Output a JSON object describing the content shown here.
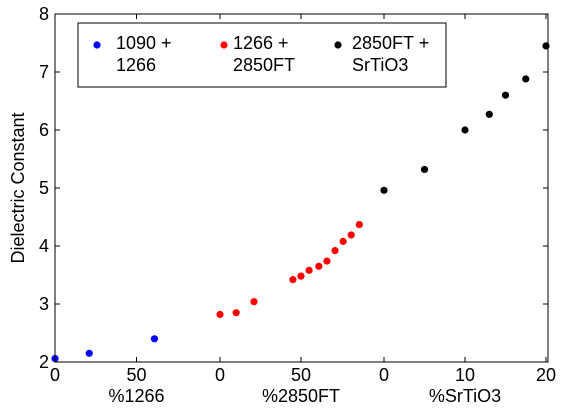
{
  "chart_data": {
    "type": "scatter",
    "title": "",
    "ylabel": "Dielectric Constant",
    "ylim": [
      2,
      8
    ],
    "y_ticks": [
      "2",
      "3",
      "4",
      "5",
      "6",
      "7",
      "8"
    ],
    "grid": false,
    "legend_placement": "top-left",
    "x_segments": [
      {
        "xlabel": "%1266",
        "xlim": [
          0,
          100
        ],
        "ticks": [
          {
            "value": 0,
            "label": "0"
          },
          {
            "value": 50,
            "label": "50"
          }
        ]
      },
      {
        "xlabel": "%2850FT",
        "xlim": [
          0,
          100
        ],
        "ticks": [
          {
            "value": 0,
            "label": "0"
          },
          {
            "value": 50,
            "label": "50"
          }
        ]
      },
      {
        "xlabel": "%SrTiO3",
        "xlim": [
          0,
          20
        ],
        "ticks": [
          {
            "value": 0,
            "label": "0"
          },
          {
            "value": 10,
            "label": "10"
          },
          {
            "value": 20,
            "label": "20"
          }
        ]
      }
    ],
    "series": [
      {
        "name_lines": [
          "1090 +",
          "1266"
        ],
        "color": "#0000ff",
        "segment": 0,
        "x": [
          0,
          21,
          61
        ],
        "y": [
          2.06,
          2.15,
          2.4
        ]
      },
      {
        "name_lines": [
          "1266 +",
          "2850FT"
        ],
        "color": "#ff0000",
        "segment": 1,
        "x": [
          0,
          10,
          21,
          45,
          50,
          55,
          61,
          66,
          71,
          76,
          81,
          86
        ],
        "y": [
          2.82,
          2.85,
          3.04,
          3.42,
          3.48,
          3.58,
          3.65,
          3.74,
          3.92,
          4.08,
          4.19,
          4.37
        ]
      },
      {
        "name_lines": [
          "2850FT +",
          "SrTiO3"
        ],
        "color": "#000000",
        "segment": 2,
        "x": [
          0,
          5,
          10,
          13,
          15,
          17.5,
          20
        ],
        "y": [
          4.96,
          5.32,
          6.0,
          6.27,
          6.6,
          6.88,
          7.45
        ]
      }
    ]
  }
}
